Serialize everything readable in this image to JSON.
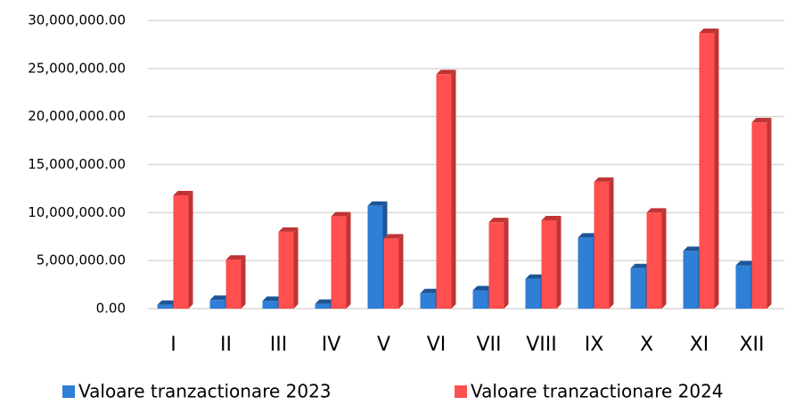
{
  "chart_data": {
    "type": "bar",
    "categories": [
      "I",
      "II",
      "III",
      "IV",
      "V",
      "VI",
      "VII",
      "VIII",
      "IX",
      "X",
      "XI",
      "XII"
    ],
    "series": [
      {
        "name": "Valoare tranzactionare 2023",
        "color": "#2f7fd6",
        "side": "#1d5596",
        "values": [
          400000,
          900000,
          800000,
          500000,
          10700000,
          1600000,
          1900000,
          3100000,
          7400000,
          4200000,
          6000000,
          4500000
        ]
      },
      {
        "name": "Valoare tranzactionare 2024",
        "color": "#ff4f4f",
        "side": "#c03434",
        "values": [
          11800000,
          5100000,
          8000000,
          9600000,
          7300000,
          24400000,
          9000000,
          9200000,
          13200000,
          10000000,
          28700000,
          19400000
        ]
      }
    ],
    "ylim": [
      0,
      30000000
    ],
    "yticks": [
      {
        "value": 0,
        "label": "0.00"
      },
      {
        "value": 5000000,
        "label": "5,000,000.00"
      },
      {
        "value": 10000000,
        "label": "10,000,000.00"
      },
      {
        "value": 15000000,
        "label": "15,000,000.00"
      },
      {
        "value": 20000000,
        "label": "20,000,000.00"
      },
      {
        "value": 25000000,
        "label": "25,000,000.00"
      },
      {
        "value": 30000000,
        "label": "30,000,000.00"
      }
    ],
    "grid": true
  }
}
